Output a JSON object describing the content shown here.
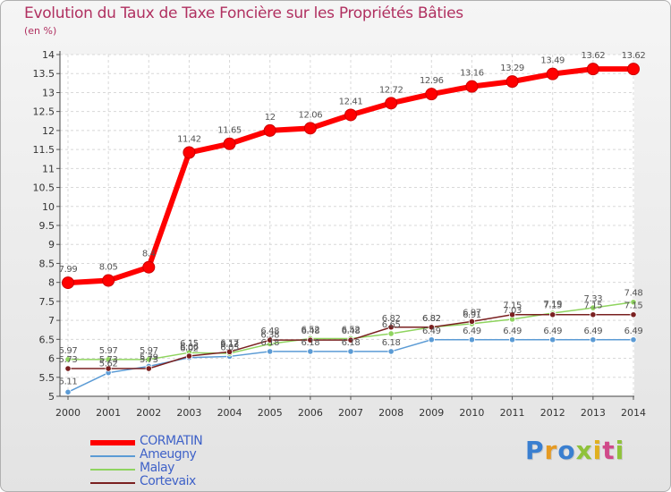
{
  "chart_data": {
    "type": "line",
    "title": "Evolution du Taux de Taxe Foncière sur les Propriétés Bâties",
    "ylabel": "(en %)",
    "xlabel": "",
    "ylim": [
      5,
      14
    ],
    "yticks": [
      5,
      5.5,
      6,
      6.5,
      7,
      7.5,
      8,
      8.5,
      9,
      9.5,
      10,
      10.5,
      11,
      11.5,
      12,
      12.5,
      13,
      13.5,
      14
    ],
    "ytick_labels": [
      "5",
      "5.5",
      "6",
      "6.5",
      "7",
      "7.5",
      "8",
      "8.5",
      "9",
      "9.5",
      "10",
      "10.5",
      "11",
      "11.5",
      "12",
      "12.5",
      "13",
      "13.5",
      "14"
    ],
    "categories": [
      "2000",
      "2001",
      "2002",
      "2003",
      "2004",
      "2005",
      "2006",
      "2007",
      "2008",
      "2009",
      "2010",
      "2011",
      "2012",
      "2013",
      "2014"
    ],
    "grid": true,
    "series": [
      {
        "name": "CORMATIN",
        "color": "#ff0000",
        "values": [
          7.99,
          8.05,
          8.4,
          11.42,
          11.65,
          12,
          12.06,
          12.41,
          12.72,
          12.96,
          13.16,
          13.29,
          13.49,
          13.62,
          13.62
        ],
        "labels": [
          "7.99",
          "8.05",
          "8.4",
          "11.42",
          "11.65",
          "12",
          "12.06",
          "12.41",
          "12.72",
          "12.96",
          "13.16",
          "13.29",
          "13.49",
          "13.62",
          "13.62"
        ]
      },
      {
        "name": "Ameugny",
        "color": "#5b9bd5",
        "values": [
          5.11,
          5.62,
          5.79,
          6.02,
          6.05,
          6.18,
          6.18,
          6.18,
          6.18,
          6.49,
          6.49,
          6.49,
          6.49,
          6.49,
          6.49
        ],
        "labels": [
          "5.11",
          "5.62",
          "5.79",
          "6.02",
          "6.05",
          "6.18",
          "6.18",
          "6.18",
          "6.18",
          "6.49",
          "6.49",
          "6.49",
          "6.49",
          "6.49",
          "6.49"
        ]
      },
      {
        "name": "Malay",
        "color": "#8fd45f",
        "values": [
          5.97,
          5.97,
          5.97,
          6.15,
          6.13,
          6.38,
          6.52,
          6.52,
          6.65,
          6.82,
          6.91,
          7.03,
          7.19,
          7.33,
          7.48
        ],
        "labels": [
          "5.97",
          "5.97",
          "5.97",
          "6.15",
          "6.13",
          "6.38",
          "6.52",
          "6.52",
          "6.65",
          "6.82",
          "6.91",
          "7.03",
          "7.19",
          "7.33",
          "7.48"
        ]
      },
      {
        "name": "Cortevaix",
        "color": "#7a2020",
        "values": [
          5.73,
          5.73,
          5.73,
          6.06,
          6.17,
          6.48,
          6.48,
          6.48,
          6.82,
          6.82,
          6.97,
          7.15,
          7.15,
          7.15,
          7.15
        ],
        "labels": [
          "5.73",
          "5.73",
          "5.73",
          "6.06",
          "6.17",
          "6.48",
          "6.48",
          "6.48",
          "6.82",
          "6.82",
          "6.97",
          "7.15",
          "7.15",
          "7.15",
          "7.15"
        ]
      }
    ],
    "legend_position": "bottom-left"
  },
  "logo": {
    "letters": [
      "P",
      "r",
      "o",
      "x",
      "i",
      "t",
      "i"
    ],
    "colors": [
      "#3a7fd0",
      "#e69a22",
      "#3a7fd0",
      "#8fc23a",
      "#e0b020",
      "#d04a8a",
      "#8fc23a"
    ]
  }
}
